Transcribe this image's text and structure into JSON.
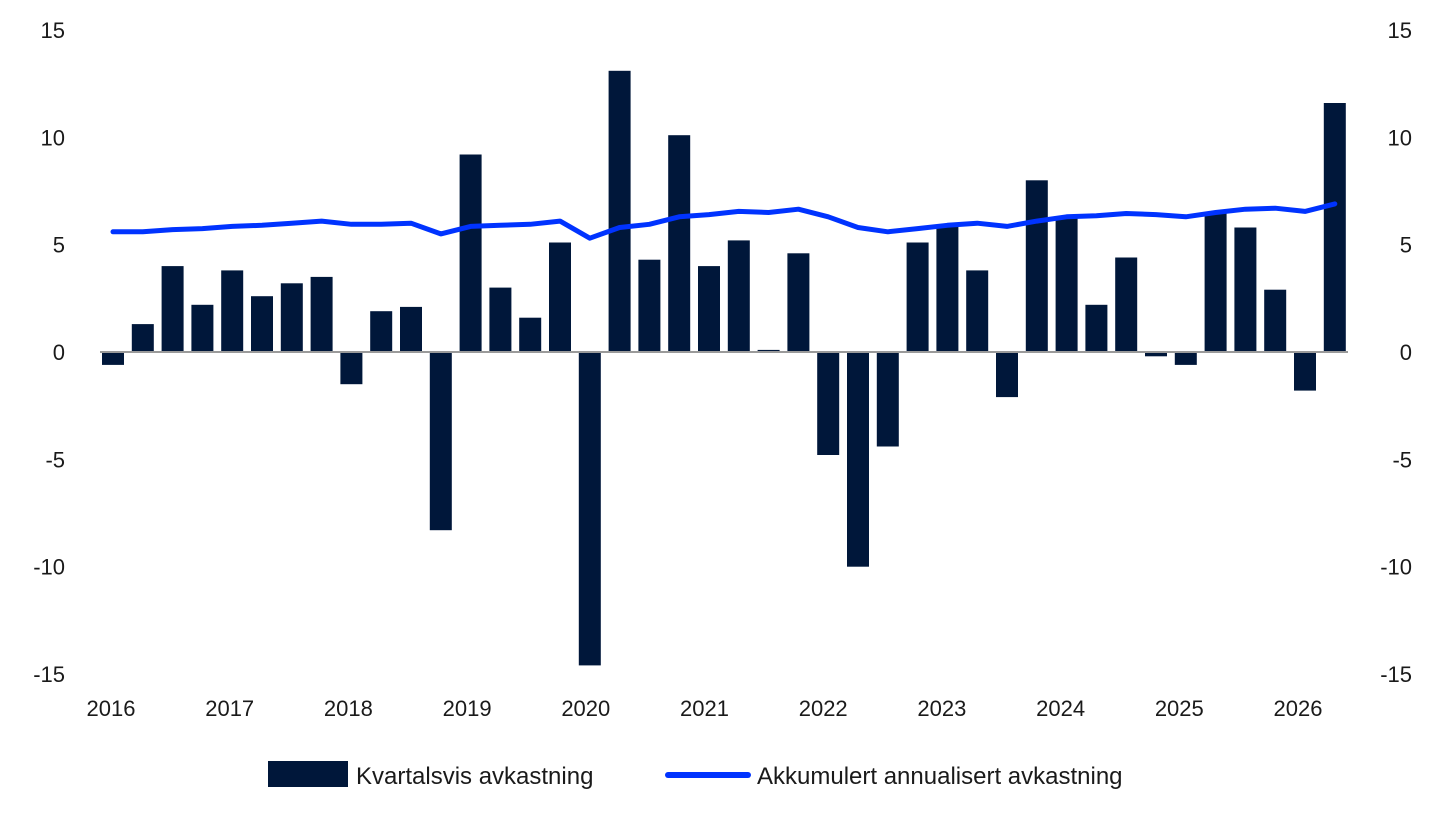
{
  "chart_data": {
    "type": "bar",
    "x_labels": [
      "2016",
      "2017",
      "2018",
      "2019",
      "2020",
      "2021",
      "2022",
      "2023",
      "2024",
      "2025",
      "2026"
    ],
    "ylim": [
      -15,
      15
    ],
    "yticks": [
      "15",
      "10",
      "5",
      "0",
      "-5",
      "-10",
      "-15"
    ],
    "y_right_ticks": [
      "15",
      "10",
      "5",
      "0",
      "-5",
      "-10",
      "-15"
    ],
    "grid": false,
    "legend_position": "bottom-center",
    "series": [
      {
        "name": "Kvartalsvis avkastning",
        "type": "bar",
        "color": "#00173a",
        "values": [
          -0.6,
          1.3,
          4.0,
          2.2,
          3.8,
          2.6,
          3.2,
          3.5,
          -1.5,
          1.9,
          2.1,
          -8.3,
          9.2,
          3.0,
          1.6,
          5.1,
          -14.6,
          13.1,
          4.3,
          10.1,
          4.0,
          5.2,
          0.1,
          4.6,
          -4.8,
          -10.0,
          -4.4,
          5.1,
          5.9,
          3.8,
          -2.1,
          8.0,
          6.3,
          2.2,
          4.4,
          -0.2,
          -0.6,
          6.5,
          5.8,
          2.9,
          -1.8,
          11.6
        ]
      },
      {
        "name": "Akkumulert annualisert avkastning",
        "type": "line",
        "color": "#0033ff",
        "values": [
          5.6,
          5.6,
          5.7,
          5.75,
          5.85,
          5.9,
          6.0,
          6.1,
          5.95,
          5.95,
          6.0,
          5.5,
          5.85,
          5.9,
          5.95,
          6.1,
          5.3,
          5.8,
          5.95,
          6.3,
          6.4,
          6.55,
          6.5,
          6.65,
          6.3,
          5.8,
          5.6,
          5.75,
          5.9,
          6.0,
          5.85,
          6.1,
          6.3,
          6.35,
          6.45,
          6.4,
          6.3,
          6.5,
          6.65,
          6.7,
          6.55,
          6.9
        ]
      }
    ]
  }
}
